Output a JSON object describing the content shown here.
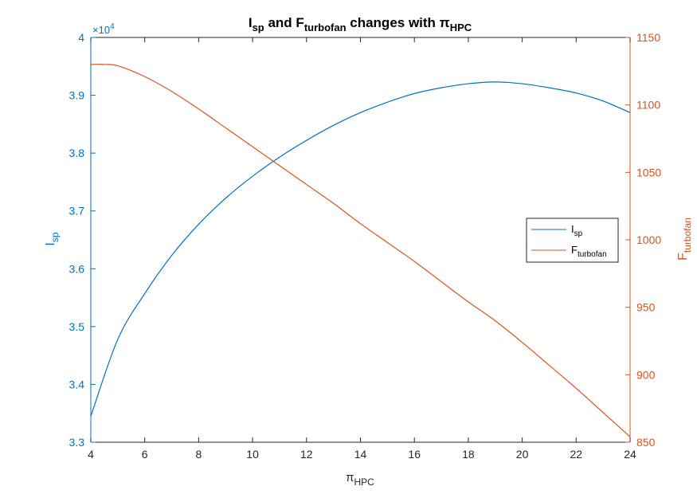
{
  "chart_data": {
    "type": "line",
    "title": {
      "a": "I",
      "a_sub": "sp",
      "b": " and F",
      "b_sub": "turbofan",
      "c": " changes with π",
      "c_sub": "HPC"
    },
    "xlabel": {
      "symbol": "π",
      "sub": "HPC"
    },
    "ylabel_left": {
      "main": "I",
      "sub": "sp"
    },
    "ylabel_right": {
      "main": "F",
      "sub": "turbofan"
    },
    "xlim": [
      4,
      24
    ],
    "ylim_left": [
      33000,
      40000
    ],
    "ylim_right": [
      850,
      1150
    ],
    "left_exponent": {
      "base": "×10",
      "power": "4"
    },
    "x_ticks": [
      "4",
      "6",
      "8",
      "10",
      "12",
      "14",
      "16",
      "18",
      "20",
      "22",
      "24"
    ],
    "y_left_ticks": [
      "3.3",
      "3.4",
      "3.5",
      "3.6",
      "3.7",
      "3.8",
      "3.9",
      "4"
    ],
    "y_right_ticks": [
      "850",
      "900",
      "950",
      "1000",
      "1050",
      "1100",
      "1150"
    ],
    "legend_position": "middle-right",
    "grid": false,
    "colors": {
      "isp": "#0072BD",
      "f": "#D95319"
    },
    "series": [
      {
        "name": "I",
        "name_sub": "sp",
        "axis": "left",
        "x": [
          4,
          5,
          6,
          7,
          8,
          9,
          10,
          11,
          12,
          13,
          14,
          15,
          16,
          17,
          18,
          19,
          20,
          21,
          22,
          23,
          24
        ],
        "values": [
          33450,
          34780,
          35570,
          36230,
          36770,
          37220,
          37600,
          37930,
          38220,
          38480,
          38700,
          38880,
          39030,
          39130,
          39200,
          39230,
          39200,
          39130,
          39040,
          38900,
          38700
        ]
      },
      {
        "name": "F",
        "name_sub": "turbofan",
        "axis": "right",
        "x": [
          4,
          4.5,
          5,
          6,
          7,
          8,
          9,
          10,
          11,
          12,
          13,
          14,
          15,
          16,
          17,
          18,
          19,
          20,
          21,
          22,
          23,
          24
        ],
        "values": [
          1130,
          1130,
          1129,
          1121,
          1110,
          1097,
          1083,
          1069,
          1055,
          1041,
          1027,
          1012,
          998,
          984,
          969,
          954,
          940,
          924,
          907,
          890,
          872,
          854
        ]
      }
    ]
  }
}
